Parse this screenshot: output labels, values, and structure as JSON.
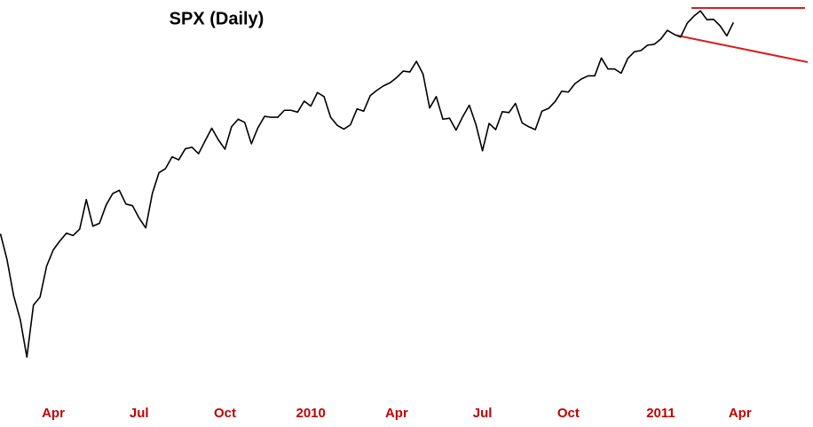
{
  "chart_data": {
    "type": "line",
    "title": "SPX (Daily)",
    "log": true,
    "color": "#000000",
    "label_color": "#c00000",
    "categories": [
      null,
      null,
      null,
      null,
      null,
      null,
      null,
      null,
      "Apr",
      null,
      null,
      null,
      null,
      null,
      null,
      null,
      null,
      null,
      null,
      null,
      null,
      "Jul",
      null,
      null,
      null,
      null,
      null,
      null,
      null,
      null,
      null,
      null,
      null,
      null,
      "Oct",
      null,
      null,
      null,
      null,
      null,
      null,
      null,
      null,
      null,
      null,
      null,
      null,
      "2010",
      null,
      null,
      null,
      null,
      null,
      null,
      null,
      null,
      null,
      null,
      null,
      null,
      "Apr",
      null,
      null,
      null,
      null,
      null,
      null,
      null,
      null,
      null,
      null,
      null,
      null,
      "Jul",
      null,
      null,
      null,
      null,
      null,
      null,
      null,
      null,
      null,
      null,
      null,
      null,
      "Oct",
      null,
      null,
      null,
      null,
      null,
      null,
      null,
      null,
      null,
      null,
      null,
      null,
      null,
      "2011",
      null,
      null,
      null,
      null,
      null,
      null,
      null,
      null,
      null,
      null,
      null,
      "Apr"
    ],
    "values": [
      869,
      826,
      770,
      735,
      683,
      756,
      768,
      816,
      842,
      857,
      870,
      866,
      877,
      929,
      882,
      887,
      919,
      940,
      946,
      921,
      918,
      896,
      879,
      940,
      979,
      987,
      1010,
      1004,
      1026,
      1029,
      1016,
      1042,
      1068,
      1044,
      1025,
      1071,
      1087,
      1080,
      1036,
      1069,
      1093,
      1091,
      1091,
      1106,
      1106,
      1102,
      1126,
      1115,
      1145,
      1136,
      1091,
      1074,
      1066,
      1075,
      1109,
      1104,
      1138,
      1150,
      1160,
      1167,
      1179,
      1194,
      1192,
      1217,
      1187,
      1111,
      1136,
      1087,
      1089,
      1064,
      1092,
      1117,
      1076,
      1022,
      1078,
      1065,
      1103,
      1101,
      1121,
      1079,
      1071,
      1065,
      1104,
      1110,
      1125,
      1148,
      1146,
      1165,
      1176,
      1183,
      1183,
      1225,
      1199,
      1199,
      1189,
      1224,
      1240,
      1243,
      1256,
      1258,
      1271,
      1293,
      1283,
      1276,
      1311,
      1329,
      1343,
      1320,
      1321,
      1304,
      1279,
      1313,
      null
    ],
    "ylim": [
      660,
      1360
    ]
  }
}
